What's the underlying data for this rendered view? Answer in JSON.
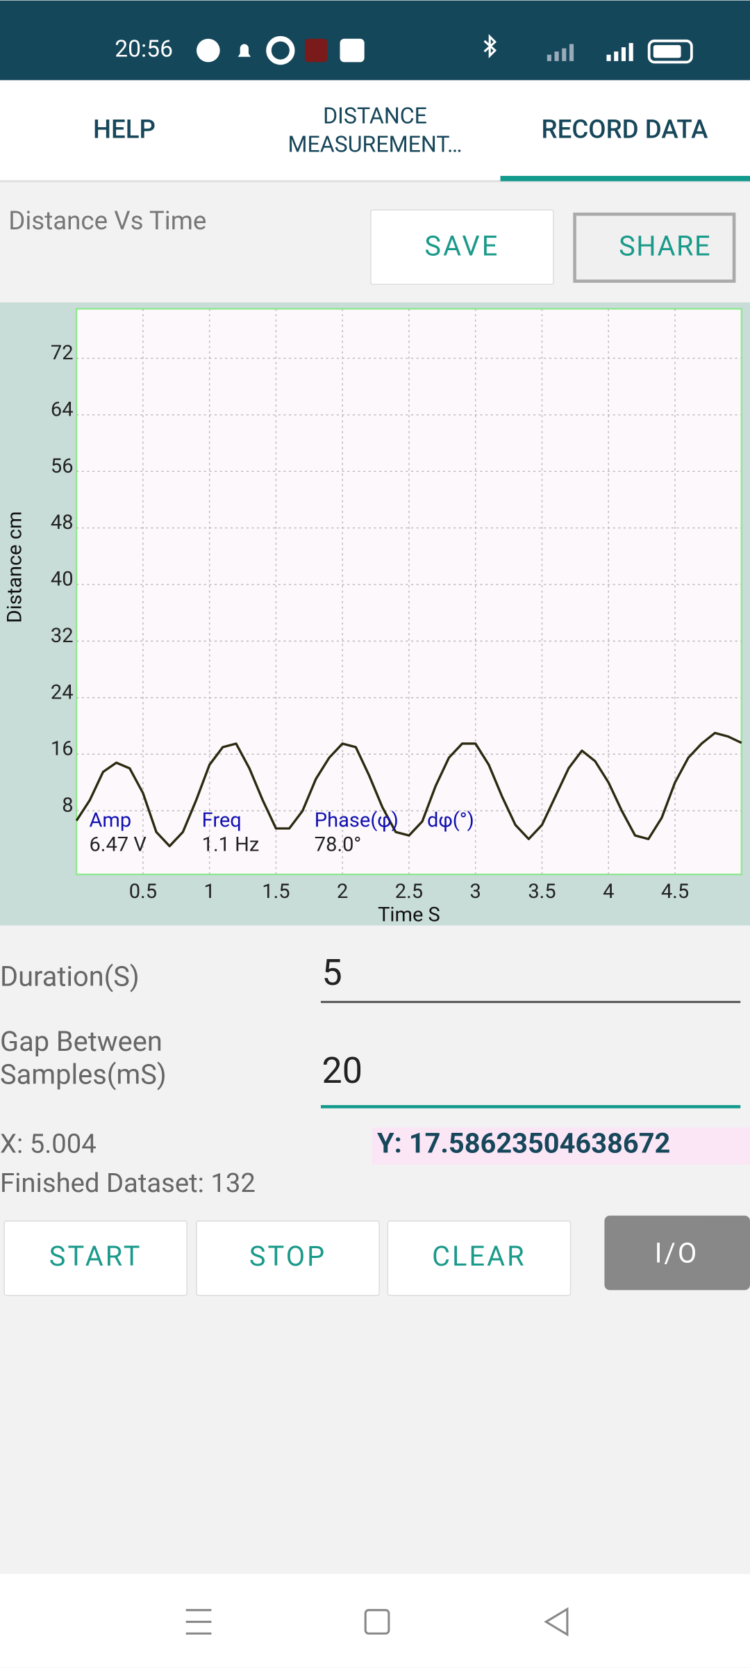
{
  "status_bar": {
    "time": "20:56"
  },
  "tabs": [
    {
      "label": "HELP"
    },
    {
      "lines": [
        "DISTANCE",
        "MEASUREMENT…"
      ]
    },
    {
      "label": "RECORD DATA"
    }
  ],
  "chart_header": {
    "title": "Distance Vs Time",
    "save": "SAVE",
    "share": "SHARE"
  },
  "chart_data": {
    "type": "line",
    "x_label": "Time S",
    "y_label": "Distance cm",
    "xlim": [
      0,
      5
    ],
    "ylim": [
      -1,
      79
    ],
    "xticks": [
      0.5,
      1,
      1.5,
      2,
      2.5,
      3,
      3.5,
      4,
      4.5
    ],
    "yticks": [
      8,
      16,
      24,
      32,
      40,
      48,
      56,
      64,
      72
    ],
    "grid": true,
    "x": [
      0,
      0.1,
      0.2,
      0.3,
      0.4,
      0.5,
      0.6,
      0.7,
      0.8,
      0.9,
      1.0,
      1.1,
      1.2,
      1.3,
      1.4,
      1.5,
      1.6,
      1.7,
      1.8,
      1.9,
      2.0,
      2.1,
      2.2,
      2.3,
      2.4,
      2.5,
      2.6,
      2.7,
      2.8,
      2.9,
      3.0,
      3.1,
      3.2,
      3.3,
      3.4,
      3.5,
      3.6,
      3.7,
      3.8,
      3.9,
      4.0,
      4.1,
      4.2,
      4.3,
      4.4,
      4.5,
      4.6,
      4.7,
      4.8,
      4.9,
      5.0
    ],
    "series": [
      {
        "color": "#2b2a10",
        "values": [
          6.6,
          9.5,
          13.5,
          14.8,
          14,
          10.5,
          5,
          3,
          5,
          9.5,
          14.5,
          17,
          17.5,
          14,
          9.5,
          5.5,
          5.5,
          8,
          12.5,
          15.5,
          17.5,
          17,
          13,
          8.5,
          5,
          4.5,
          6.5,
          11.5,
          15.5,
          17.5,
          17.5,
          14.5,
          10,
          6,
          4,
          6,
          10,
          14,
          16.5,
          15,
          12,
          8,
          4.5,
          4,
          7,
          12,
          15.5,
          17.5,
          19,
          18.5,
          17.6
        ]
      }
    ],
    "annotations": [
      {
        "label": "Amp",
        "value": "6.47 V"
      },
      {
        "label": "Freq",
        "value": "1.1 Hz"
      },
      {
        "label": "Phase(φ)",
        "value": "78.0°"
      },
      {
        "label": "dφ(°)"
      }
    ]
  },
  "form": {
    "duration_label": "Duration(S)",
    "duration_value": "5",
    "gap_label": [
      "Gap Between",
      "Samples(mS)"
    ],
    "gap_value": "20",
    "x_readout": "X: 5.004",
    "y_readout": "Y: 17.58623504638672",
    "dataset": "Finished Dataset: 132"
  },
  "buttons": [
    "START",
    "STOP",
    "CLEAR",
    "I/O"
  ]
}
